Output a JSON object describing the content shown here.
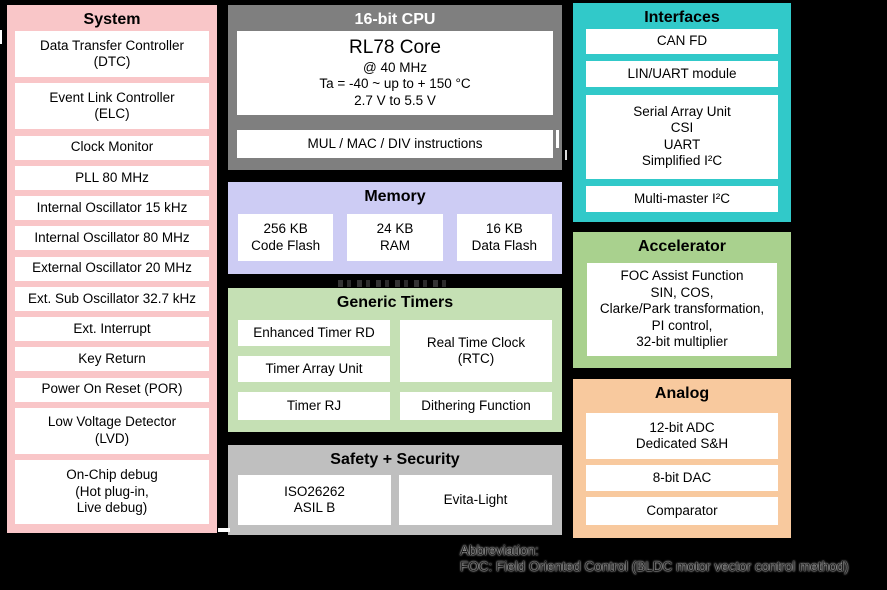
{
  "palette": {
    "background": "#000000",
    "system_pink": "#f9c6c8",
    "cpu_gray": "#7f7f7f",
    "memory_lavender": "#cdccf4",
    "timers_light_green": "#c5e0b4",
    "safety_gray": "#bfbfbf",
    "interfaces_teal": "#31c9c9",
    "accelerator_green": "#a9d18e",
    "analog_orange": "#f8c99e",
    "cell_white": "#ffffff"
  },
  "blocks": {
    "system": {
      "title": "System",
      "items": [
        "Data Transfer Controller\n(DTC)",
        "Event Link Controller\n(ELC)",
        "Clock Monitor",
        "PLL 80 MHz",
        "Internal Oscillator 15 kHz",
        "Internal Oscillator 80 MHz",
        "External Oscillator 20 MHz",
        "Ext. Sub Oscillator 32.7 kHz",
        "Ext. Interrupt",
        "Key Return",
        "Power On Reset (POR)",
        "Low Voltage Detector\n(LVD)",
        "On-Chip debug\n(Hot plug-in,\nLive debug)"
      ]
    },
    "cpu": {
      "title": "16-bit CPU",
      "core_name": "RL78 Core",
      "core_details": "@ 40 MHz\nTa = -40 ~ up to + 150 °C\n2.7 V to 5.5 V",
      "instructions": "MUL / MAC / DIV instructions"
    },
    "memory": {
      "title": "Memory",
      "items": [
        "256 KB\nCode Flash",
        "24 KB\nRAM",
        "16 KB\nData Flash"
      ]
    },
    "timers": {
      "title": "Generic Timers",
      "left_items": [
        "Enhanced Timer RD",
        "Timer Array Unit",
        "Timer RJ"
      ],
      "rtc": "Real Time Clock\n(RTC)",
      "dithering": "Dithering Function"
    },
    "safety": {
      "title": "Safety + Security",
      "items": [
        "ISO26262\nASIL B",
        "Evita-Light"
      ]
    },
    "interfaces": {
      "title": "Interfaces",
      "items": [
        "CAN FD",
        "LIN/UART module",
        "Serial Array Unit\nCSI\nUART\nSimplified I²C",
        "Multi-master I²C"
      ]
    },
    "accelerator": {
      "title": "Accelerator",
      "content": "FOC Assist Function\nSIN, COS,\nClarke/Park transformation,\nPI control,\n32-bit multiplier"
    },
    "analog": {
      "title": "Analog",
      "items": [
        "12-bit ADC\nDedicated S&H",
        "8-bit DAC",
        "Comparator"
      ]
    }
  },
  "footnote": {
    "line1": "Abbreviation:",
    "line2": "FOC: Field Oriented Control (BLDC motor vector control method)"
  }
}
